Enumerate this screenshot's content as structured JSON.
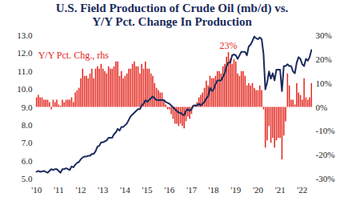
{
  "chart_data": {
    "type": "combo",
    "title": "U.S. Field Production of Crude Oil (mb/d) vs.\nY/Y Pct. Change In Production",
    "categories": [
      "'10",
      null,
      null,
      null,
      null,
      null,
      null,
      null,
      null,
      null,
      null,
      null,
      "'11",
      null,
      null,
      null,
      null,
      null,
      null,
      null,
      null,
      null,
      null,
      null,
      "'12",
      null,
      null,
      null,
      null,
      null,
      null,
      null,
      null,
      null,
      null,
      null,
      "'13",
      null,
      null,
      null,
      null,
      null,
      null,
      null,
      null,
      null,
      null,
      null,
      "'14",
      null,
      null,
      null,
      null,
      null,
      null,
      null,
      null,
      null,
      null,
      null,
      "'15",
      null,
      null,
      null,
      null,
      null,
      null,
      null,
      null,
      null,
      null,
      null,
      "'16",
      null,
      null,
      null,
      null,
      null,
      null,
      null,
      null,
      null,
      null,
      null,
      "'17",
      null,
      null,
      null,
      null,
      null,
      null,
      null,
      null,
      null,
      null,
      null,
      "'18",
      null,
      null,
      null,
      null,
      null,
      null,
      null,
      null,
      null,
      null,
      null,
      "'19",
      null,
      null,
      null,
      null,
      null,
      null,
      null,
      null,
      null,
      null,
      null,
      "'20",
      null,
      null,
      null,
      null,
      null,
      null,
      null,
      null,
      null,
      null,
      null,
      "'21",
      null,
      null,
      null,
      null,
      null,
      null,
      null,
      null,
      null,
      null,
      null,
      "'22",
      null,
      null,
      null,
      null,
      null
    ],
    "series": [
      {
        "type": "line",
        "color": "#1b2b5e",
        "values": [
          5.4,
          5.45,
          5.4,
          5.42,
          5.45,
          5.4,
          5.35,
          5.45,
          5.55,
          5.5,
          5.55,
          5.55,
          5.45,
          5.35,
          5.55,
          5.55,
          5.6,
          5.55,
          5.5,
          5.7,
          5.65,
          5.8,
          5.9,
          5.95,
          6.1,
          6.2,
          6.25,
          6.25,
          6.3,
          6.3,
          6.4,
          6.4,
          6.55,
          6.8,
          6.85,
          7.05,
          7.05,
          7.1,
          7.15,
          7.3,
          7.3,
          7.3,
          7.5,
          7.6,
          7.8,
          7.7,
          7.9,
          7.9,
          8.0,
          8.1,
          8.3,
          8.5,
          8.6,
          8.7,
          8.8,
          8.9,
          8.9,
          9.1,
          9.2,
          9.4,
          9.3,
          9.4,
          9.5,
          9.6,
          9.5,
          9.4,
          9.4,
          9.4,
          9.4,
          9.4,
          9.3,
          9.25,
          9.2,
          9.1,
          9.0,
          8.9,
          8.8,
          8.7,
          8.7,
          8.6,
          8.55,
          8.8,
          8.9,
          8.8,
          8.9,
          9.1,
          9.1,
          9.1,
          9.2,
          9.1,
          9.2,
          9.3,
          9.5,
          9.6,
          10.1,
          9.9,
          10.0,
          10.3,
          10.5,
          10.5,
          10.5,
          10.7,
          10.9,
          11.3,
          11.5,
          11.5,
          11.9,
          11.95,
          11.9,
          11.7,
          11.9,
          12.1,
          12.1,
          12.1,
          11.9,
          12.4,
          12.5,
          12.7,
          12.95,
          12.85,
          12.8,
          12.9,
          12.8,
          12.0,
          10.0,
          10.4,
          11.0,
          10.6,
          10.9,
          10.5,
          11.1,
          11.1,
          11.1,
          9.9,
          11.3,
          11.3,
          11.4,
          11.3,
          11.3,
          11.0,
          10.9,
          11.5,
          11.8,
          11.7,
          11.4,
          11.3,
          11.7,
          11.6,
          11.8,
          12.2
        ]
      },
      {
        "type": "bar",
        "name": "Y/Y Pct. Chg., rhs",
        "axis": "y2",
        "color": "#e3241b",
        "values": [
          4,
          5,
          4,
          4,
          3,
          3,
          3,
          2,
          -1,
          3,
          2,
          3,
          1,
          0.5,
          3,
          2,
          3,
          3,
          3,
          4,
          2,
          6,
          7,
          8,
          12,
          16,
          13,
          13,
          12,
          14,
          16,
          12,
          16,
          17,
          16,
          18,
          16,
          15,
          14,
          17,
          16,
          16,
          17,
          19,
          19,
          13,
          15,
          12,
          13,
          14,
          16,
          16,
          18,
          19,
          17,
          17,
          14,
          18,
          16,
          19,
          16,
          16,
          14,
          13,
          10,
          8,
          7,
          6,
          6,
          3,
          1,
          -1,
          -1,
          -3,
          -5,
          -7,
          -7,
          -8,
          -7,
          -8,
          -9,
          -6,
          -4,
          -5,
          -3,
          0,
          1,
          2,
          4,
          5,
          6,
          8,
          11,
          9,
          13,
          12,
          12,
          13,
          15,
          15,
          14,
          17,
          18,
          21,
          23,
          20,
          18,
          20,
          19,
          14,
          13,
          15,
          15,
          13,
          9,
          10,
          9,
          10,
          8,
          7,
          7,
          9,
          7,
          -1,
          -17,
          -14,
          -8,
          -15,
          -13,
          -17,
          -14,
          -13,
          -13,
          -22,
          -12,
          -6,
          14,
          9,
          3,
          3,
          1,
          10,
          6,
          5,
          3,
          12,
          4,
          3,
          4,
          10
        ]
      }
    ],
    "annotations": [
      {
        "text": "23%"
      }
    ],
    "ylim": [
      5,
      13
    ],
    "yticks": [
      {
        "value": 5,
        "label": "5.0"
      },
      {
        "value": 6,
        "label": "6.0"
      },
      {
        "value": 7,
        "label": "7.0"
      },
      {
        "value": 8,
        "label": "8.0"
      },
      {
        "value": 9,
        "label": "9.0"
      },
      {
        "value": 10,
        "label": "10.0"
      },
      {
        "value": 11,
        "label": "11.0"
      },
      {
        "value": 12,
        "label": "12.0"
      },
      {
        "value": 13,
        "label": "13.0"
      }
    ],
    "y2lim": [
      -30,
      30
    ],
    "y2ticks": [
      {
        "value": -30,
        "label": "-30%"
      },
      {
        "value": -20,
        "label": "-20%"
      },
      {
        "value": -10,
        "label": "-10%"
      },
      {
        "value": 0,
        "label": "0%"
      },
      {
        "value": 10,
        "label": "10%"
      },
      {
        "value": 20,
        "label": "20%"
      },
      {
        "value": 30,
        "label": "30%"
      }
    ],
    "grid": false
  }
}
